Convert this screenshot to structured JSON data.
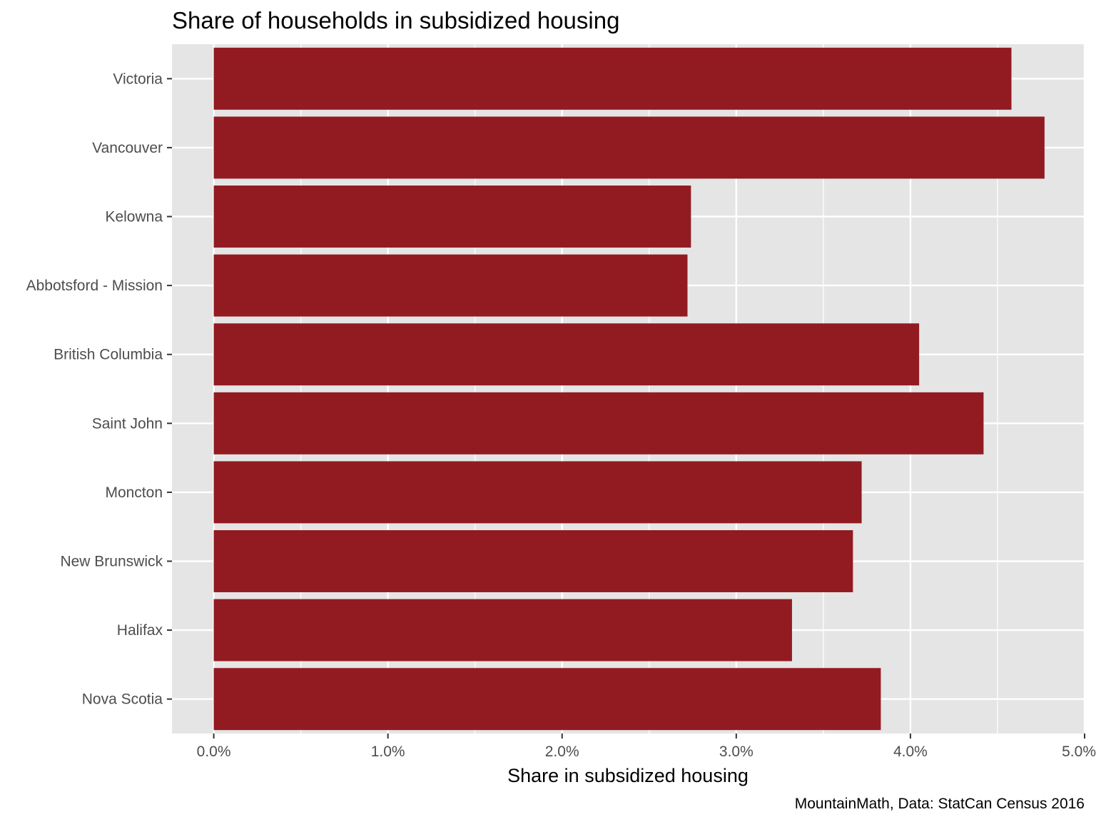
{
  "chart_data": {
    "type": "bar",
    "orientation": "horizontal",
    "title": "Share of households in subsidized housing",
    "xlabel": "Share in subsidized housing",
    "ylabel": "",
    "caption": "MountainMath, Data: StatCan Census 2016",
    "categories": [
      "Victoria",
      "Vancouver",
      "Kelowna",
      "Abbotsford - Mission",
      "British Columbia",
      "Saint John",
      "Moncton",
      "New Brunswick",
      "Halifax",
      "Nova Scotia"
    ],
    "values": [
      4.58,
      4.77,
      2.74,
      2.72,
      4.05,
      4.42,
      3.72,
      3.67,
      3.32,
      3.83
    ],
    "value_unit": "percent",
    "xlim": [
      -0.24,
      5.0
    ],
    "xticks": [
      0,
      1,
      2,
      3,
      4,
      5
    ],
    "xtick_labels": [
      "0.0%",
      "1.0%",
      "2.0%",
      "3.0%",
      "4.0%",
      "5.0%"
    ],
    "grid": true,
    "legend": "none",
    "colors": {
      "bar": "#921b22",
      "panel": "#e5e5e5",
      "grid": "#ffffff",
      "tick_text": "#4d4d4d"
    }
  }
}
